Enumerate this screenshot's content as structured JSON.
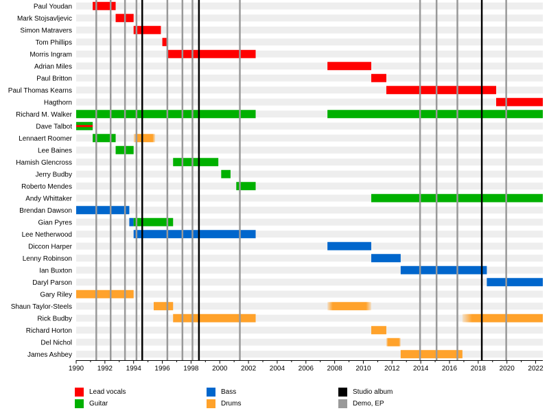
{
  "chart_data": {
    "type": "timeline",
    "x_range": [
      1990,
      2022.5
    ],
    "x_ticks": [
      "1990",
      "1992",
      "1994",
      "1996",
      "1998",
      "2000",
      "2002",
      "2004",
      "2006",
      "2008",
      "2010",
      "2012",
      "2014",
      "2016",
      "2018",
      "2020",
      "2022"
    ],
    "role_colors": {
      "Lead vocals": "#ff0000",
      "Guitar": "#00b000",
      "Bass": "#0066cc",
      "Drums": "#ffa22b",
      "Studio album": "#000000",
      "Demo, EP": "#999999"
    },
    "members": [
      {
        "name": "Paul Youdan",
        "periods": [
          {
            "role": "Lead vocals",
            "start": 1991.15,
            "end": 1992.75
          }
        ]
      },
      {
        "name": "Mark Stojsavljevic",
        "periods": [
          {
            "role": "Lead vocals",
            "start": 1992.75,
            "end": 1994.0
          }
        ]
      },
      {
        "name": "Simon Matravers",
        "periods": [
          {
            "role": "Lead vocals",
            "start": 1994.0,
            "end": 1995.9
          }
        ]
      },
      {
        "name": "Tom Phillips",
        "periods": [
          {
            "role": "Lead vocals",
            "start": 1996.0,
            "end": 1996.3
          }
        ]
      },
      {
        "name": "Morris Ingram",
        "periods": [
          {
            "role": "Lead vocals",
            "start": 1996.3,
            "end": 2002.5
          }
        ]
      },
      {
        "name": "Adrian Miles",
        "periods": [
          {
            "role": "Lead vocals",
            "start": 2007.5,
            "end": 2010.55
          }
        ]
      },
      {
        "name": "Paul Britton",
        "periods": [
          {
            "role": "Lead vocals",
            "start": 2010.55,
            "end": 2011.6
          }
        ]
      },
      {
        "name": "Paul Thomas Kearns",
        "periods": [
          {
            "role": "Lead vocals",
            "start": 2011.6,
            "end": 2019.25
          }
        ]
      },
      {
        "name": "Hagthorn",
        "periods": [
          {
            "role": "Lead vocals",
            "start": 2019.25,
            "end": 2022.5
          }
        ]
      },
      {
        "name": "Richard M. Walker",
        "periods": [
          {
            "role": "Guitar",
            "start": 1990.0,
            "end": 2002.5
          },
          {
            "role": "Guitar",
            "start": 2007.5,
            "end": 2022.5
          }
        ]
      },
      {
        "name": "Dave Talbot",
        "periods": [
          {
            "role": "Guitar",
            "start": 1990.0,
            "end": 1991.15
          },
          {
            "role": "Lead vocals",
            "start": 1990.0,
            "end": 1991.15,
            "thin": true
          }
        ]
      },
      {
        "name": "Lennaert Roomer",
        "periods": [
          {
            "role": "Guitar",
            "start": 1991.15,
            "end": 1992.75
          },
          {
            "role": "Drums",
            "start": 1994.0,
            "end": 1995.5,
            "fade": true
          }
        ]
      },
      {
        "name": "Lee Baines",
        "periods": [
          {
            "role": "Guitar",
            "start": 1992.75,
            "end": 1994.0
          }
        ]
      },
      {
        "name": "Hamish Glencross",
        "periods": [
          {
            "role": "Guitar",
            "start": 1996.75,
            "end": 1999.9
          }
        ]
      },
      {
        "name": "Jerry Budby",
        "periods": [
          {
            "role": "Guitar",
            "start": 2000.1,
            "end": 2000.75
          }
        ]
      },
      {
        "name": "Roberto Mendes",
        "periods": [
          {
            "role": "Guitar",
            "start": 2001.15,
            "end": 2002.5
          }
        ]
      },
      {
        "name": "Andy Whittaker",
        "periods": [
          {
            "role": "Guitar",
            "start": 2010.55,
            "end": 2022.5
          }
        ]
      },
      {
        "name": "Brendan Dawson",
        "periods": [
          {
            "role": "Bass",
            "start": 1990.0,
            "end": 1993.7
          }
        ]
      },
      {
        "name": "Gian Pyres",
        "periods": [
          {
            "role": "Bass",
            "start": 1993.7,
            "end": 1994.0
          },
          {
            "role": "Guitar",
            "start": 1994.0,
            "end": 1996.75
          }
        ]
      },
      {
        "name": "Lee Netherwood",
        "periods": [
          {
            "role": "Bass",
            "start": 1994.0,
            "end": 2002.5
          }
        ]
      },
      {
        "name": "Diccon Harper",
        "periods": [
          {
            "role": "Bass",
            "start": 2007.5,
            "end": 2010.55
          }
        ]
      },
      {
        "name": "Lenny Robinson",
        "periods": [
          {
            "role": "Bass",
            "start": 2010.55,
            "end": 2012.6
          }
        ]
      },
      {
        "name": "Ian Buxton",
        "periods": [
          {
            "role": "Bass",
            "start": 2012.6,
            "end": 2018.6
          }
        ]
      },
      {
        "name": "Daryl Parson",
        "periods": [
          {
            "role": "Bass",
            "start": 2018.6,
            "end": 2022.5
          }
        ]
      },
      {
        "name": "Gary Riley",
        "periods": [
          {
            "role": "Drums",
            "start": 1990.0,
            "end": 1994.0
          }
        ]
      },
      {
        "name": "Shaun Taylor-Steels",
        "periods": [
          {
            "role": "Drums",
            "start": 1995.4,
            "end": 1996.75
          },
          {
            "role": "Drums",
            "start": 2007.5,
            "end": 2010.55,
            "fade": true
          }
        ]
      },
      {
        "name": "Rick Budby",
        "periods": [
          {
            "role": "Drums",
            "start": 1996.75,
            "end": 2002.5
          },
          {
            "role": "Drums",
            "start": 2016.9,
            "end": 2022.5,
            "fade": true
          }
        ]
      },
      {
        "name": "Richard Horton",
        "periods": [
          {
            "role": "Drums",
            "start": 2010.55,
            "end": 2011.6
          }
        ]
      },
      {
        "name": "Del Nichol",
        "periods": [
          {
            "role": "Drums",
            "start": 2011.6,
            "end": 2012.6,
            "fade": true
          }
        ]
      },
      {
        "name": "James Ashbey",
        "periods": [
          {
            "role": "Drums",
            "start": 2012.6,
            "end": 2016.9
          }
        ]
      }
    ],
    "studio_albums": [
      1994.6,
      1998.55,
      2018.25
    ],
    "demos_eps": [
      1991.4,
      1992.4,
      1993.4,
      1994.2,
      1996.35,
      1997.4,
      1998.1,
      2001.4,
      2013.95,
      2015.1,
      2016.55,
      2019.95
    ]
  },
  "legend": [
    {
      "label": "Lead vocals",
      "color": "#ff0000"
    },
    {
      "label": "Guitar",
      "color": "#00b000"
    },
    {
      "label": "Bass",
      "color": "#0066cc"
    },
    {
      "label": "Drums",
      "color": "#ffa22b"
    },
    {
      "label": "Studio album",
      "color": "#000000"
    },
    {
      "label": "Demo, EP",
      "color": "#999999"
    }
  ]
}
